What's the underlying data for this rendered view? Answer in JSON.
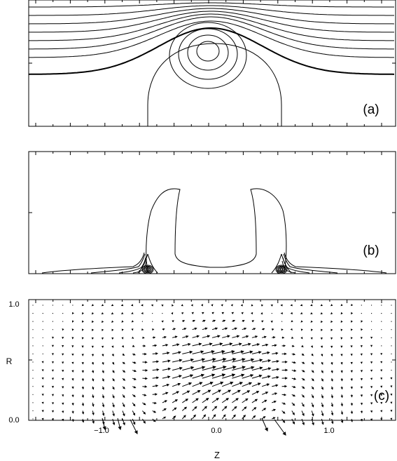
{
  "figure": {
    "panels": [
      {
        "id": "a",
        "label": "(a)"
      },
      {
        "id": "b",
        "label": "(b)"
      },
      {
        "id": "c",
        "label": "(c)"
      }
    ],
    "axes": {
      "r_label": "R",
      "z_label": "Z",
      "r_ticks": [
        {
          "value": 0.0,
          "label": "0.0"
        },
        {
          "value": 1.0,
          "label": "1.0"
        }
      ],
      "z_ticks": [
        {
          "value": -1.0,
          "label": "−1.0"
        },
        {
          "value": 0.0,
          "label": "0.0"
        },
        {
          "value": 1.0,
          "label": "1.0"
        }
      ]
    }
  },
  "chart_data": [
    {
      "type": "contour",
      "panel": "a",
      "description_kind": "magnetic flux surfaces",
      "xlim": [
        -1.75,
        1.65
      ],
      "ylim": [
        0,
        1
      ]
    },
    {
      "type": "contour",
      "panel": "b",
      "xlim": [
        -1.75,
        1.65
      ],
      "ylim": [
        0,
        1
      ]
    },
    {
      "type": "vector",
      "panel": "c",
      "xlim": [
        -1.75,
        1.65
      ],
      "ylim": [
        0,
        1
      ],
      "x_ticks": [
        -1.0,
        0.0,
        1.0
      ],
      "y_ticks": [
        0.0,
        1.0
      ]
    }
  ]
}
